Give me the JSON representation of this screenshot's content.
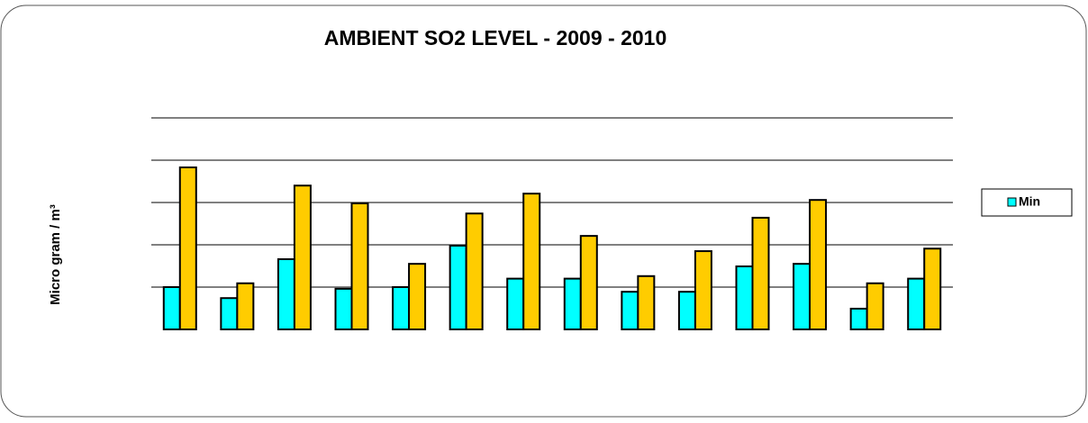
{
  "chart_data": {
    "type": "bar",
    "title": "AMBIENT SO2 LEVEL - 2009 - 2010",
    "y_label": "Micro gram / m³",
    "categories": [
      null,
      null,
      null,
      null,
      null,
      null,
      null,
      null,
      null,
      null,
      null,
      null,
      null,
      null
    ],
    "series": [
      {
        "name": "Min",
        "color": "#00ffff",
        "values": [
          10,
          7.4,
          16.6,
          9.6,
          10,
          19.8,
          12,
          12,
          8.9,
          8.9,
          14.9,
          15.5,
          4.9,
          12
        ]
      },
      {
        "color": "#ffcc00",
        "values": [
          38.3,
          10.9,
          34,
          29.8,
          15.5,
          27.4,
          32.1,
          22.1,
          12.6,
          18.5,
          26.4,
          30.6,
          10.9,
          19.1
        ]
      }
    ],
    "ylim": [
      0,
      50
    ],
    "yticks": [
      10,
      20,
      30,
      40,
      50
    ],
    "grid": true,
    "legend": "right"
  }
}
